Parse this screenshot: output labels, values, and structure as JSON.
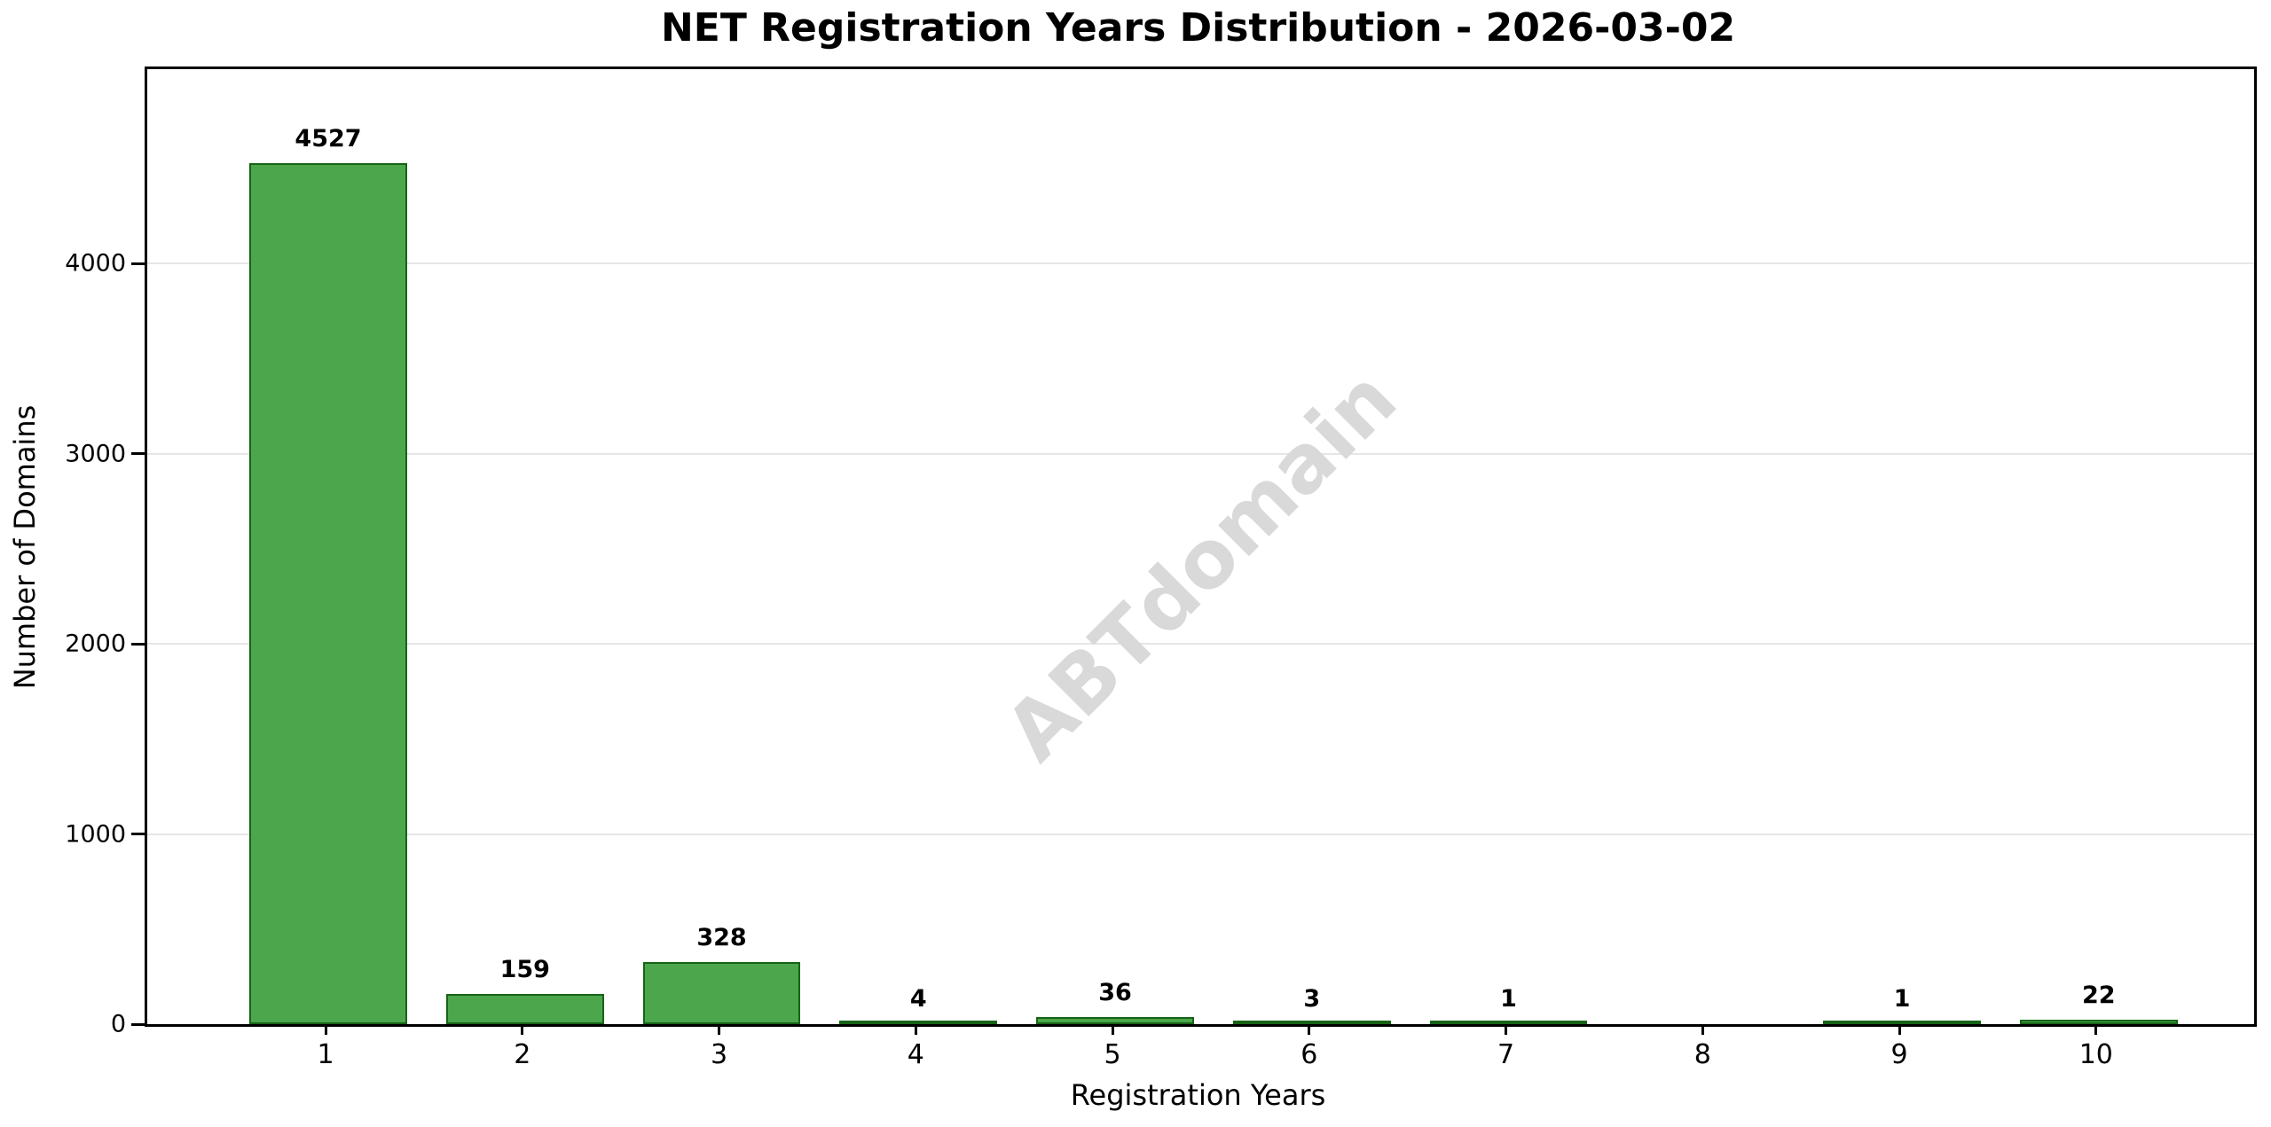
{
  "figure": {
    "background": "#ffffff"
  },
  "chart_data": {
    "type": "bar",
    "title": "NET Registration Years Distribution - 2026-03-02",
    "xlabel": "Registration Years",
    "ylabel": "Number of Domains",
    "watermark": "ABTdomain",
    "categories": [
      "1",
      "2",
      "3",
      "4",
      "5",
      "6",
      "7",
      "8",
      "9",
      "10"
    ],
    "values": [
      4527,
      159,
      328,
      4,
      36,
      3,
      1,
      0,
      1,
      22
    ],
    "bar_labels": [
      "4527",
      "159",
      "328",
      "4",
      "36",
      "3",
      "1",
      "",
      "1",
      "22"
    ],
    "yticks": [
      0,
      1000,
      2000,
      3000,
      4000
    ],
    "ylim": [
      0,
      5021
    ],
    "grid": "horizontal",
    "gridline_color": "#e6e6e6",
    "bar_color": "#4ca64c",
    "bar_edge_color": "#166416",
    "watermark_color": "#d9d9d9",
    "legend": "none"
  }
}
